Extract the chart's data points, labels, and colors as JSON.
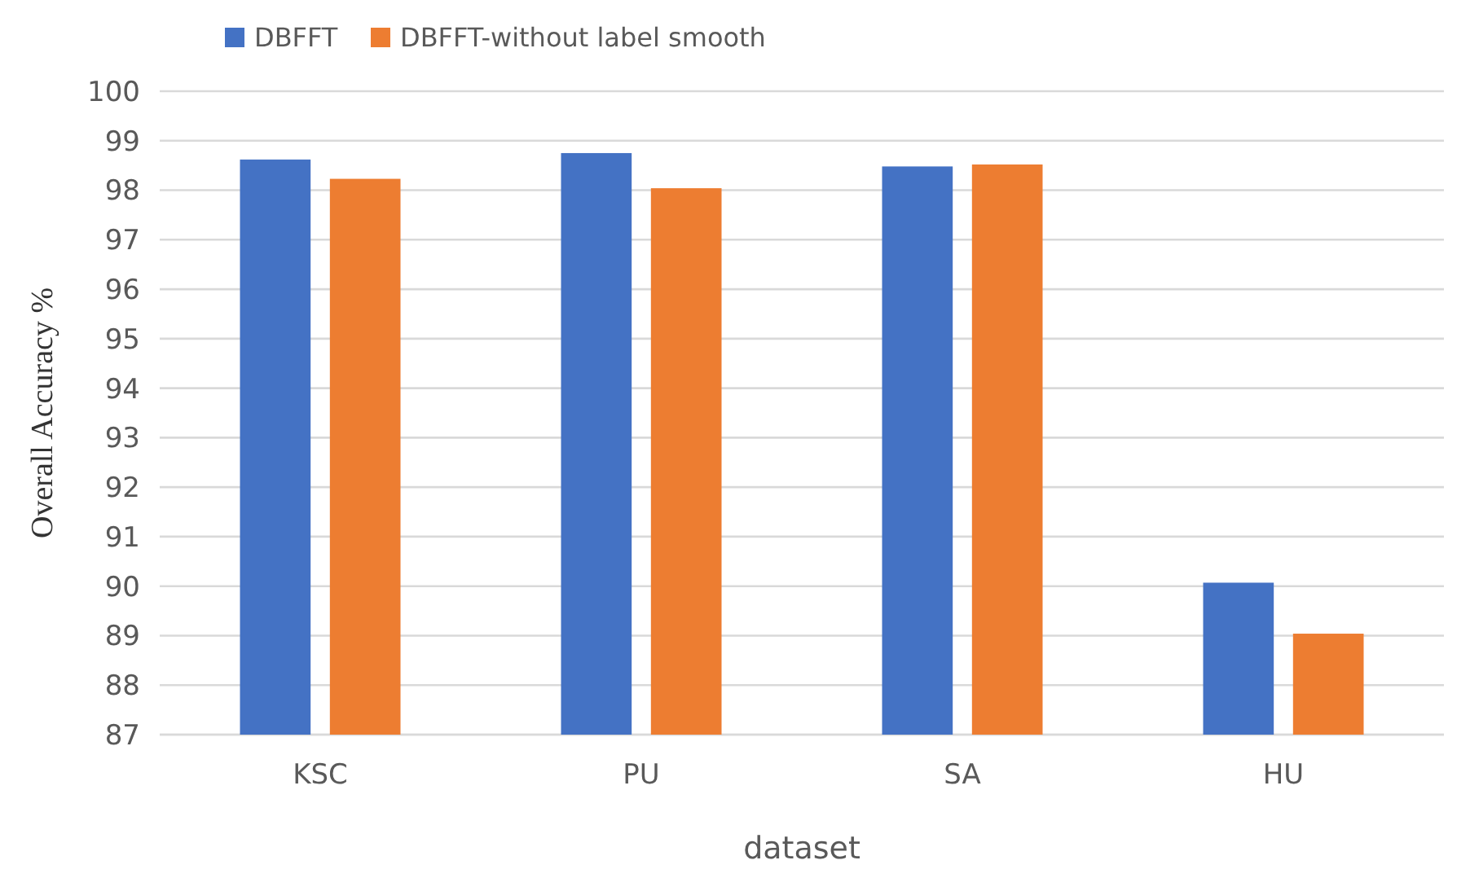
{
  "chart_data": {
    "type": "bar",
    "xlabel": "dataset",
    "ylabel": "Overall Accuracy %",
    "categories": [
      "KSC",
      "PU",
      "SA",
      "HU"
    ],
    "series": [
      {
        "name": "DBFFT",
        "color": "#4472c4",
        "values": [
          98.62,
          98.75,
          98.48,
          90.07
        ]
      },
      {
        "name": "DBFFT-without label smooth",
        "color": "#ed7d31",
        "values": [
          98.23,
          98.04,
          98.52,
          89.04
        ]
      }
    ],
    "ylim": [
      87,
      100
    ],
    "yticks": [
      87,
      88,
      89,
      90,
      91,
      92,
      93,
      94,
      95,
      96,
      97,
      98,
      99,
      100
    ],
    "grid": "y",
    "legend": "top left"
  }
}
